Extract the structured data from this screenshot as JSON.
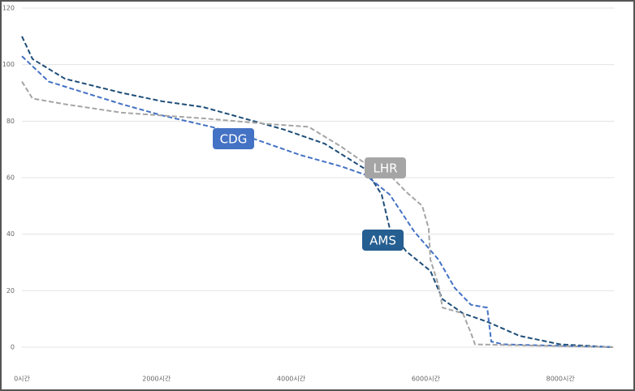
{
  "chart_data": {
    "type": "line",
    "xlim": [
      0,
      8800
    ],
    "ylim": [
      0,
      120
    ],
    "xticks": [
      {
        "value": 0,
        "label": "0시간"
      },
      {
        "value": 2000,
        "label": "2000시간"
      },
      {
        "value": 4000,
        "label": "4000시간"
      },
      {
        "value": 6000,
        "label": "6000시간"
      },
      {
        "value": 8000,
        "label": "8000시간"
      }
    ],
    "yticks": [
      0,
      20,
      40,
      60,
      80,
      100,
      120
    ],
    "grid": true,
    "series": [
      {
        "name": "AMS",
        "color": "#1f4e79",
        "x": [
          0,
          157,
          639,
          1484,
          2087,
          2690,
          3293,
          3896,
          4499,
          5103,
          5344,
          5464,
          5706,
          6068,
          6248,
          6550,
          6912,
          7394,
          7998,
          8782
        ],
        "values": [
          110,
          102,
          95,
          90,
          87,
          85,
          81,
          77,
          72,
          63,
          54,
          42,
          34,
          27,
          17,
          12,
          9,
          4,
          1,
          0
        ]
      },
      {
        "name": "CDG",
        "color": "#4472c4",
        "x": [
          0,
          398,
          1484,
          2087,
          2811,
          3414,
          4137,
          4741,
          5103,
          5464,
          5826,
          6188,
          6429,
          6671,
          6912,
          6972,
          7153,
          8782
        ],
        "values": [
          103,
          94,
          86,
          82,
          78,
          74,
          68,
          64,
          61,
          54,
          41,
          31,
          21,
          15,
          14,
          2,
          1,
          0
        ]
      },
      {
        "name": "LHR",
        "color": "#a5a5a5",
        "x": [
          0,
          157,
          639,
          1484,
          2690,
          3655,
          4258,
          4741,
          5103,
          5464,
          5706,
          5947,
          6043,
          6068,
          6188,
          6248,
          6550,
          6671,
          6731,
          8782
        ],
        "values": [
          94,
          88,
          86,
          83,
          81,
          79,
          78,
          71,
          65,
          61,
          55,
          50,
          42,
          31,
          22,
          14,
          12,
          5,
          1,
          0
        ]
      }
    ]
  }
}
